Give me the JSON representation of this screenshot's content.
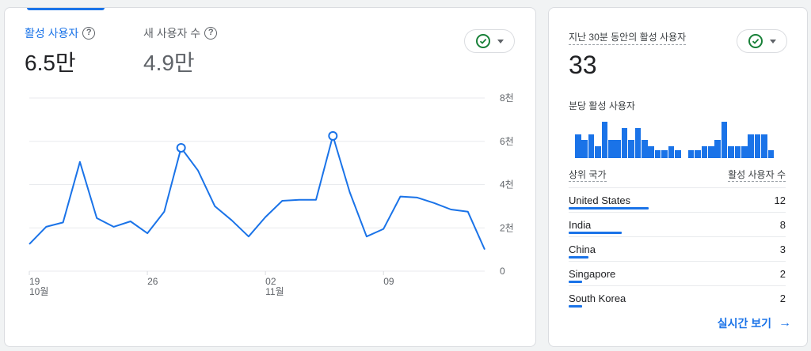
{
  "overview": {
    "metrics": [
      {
        "label": "활성 사용자",
        "value": "6.5만"
      },
      {
        "label": "새 사용자 수",
        "value": "4.9만"
      }
    ]
  },
  "icons": {
    "help": "help-icon",
    "status": "check-circle-icon",
    "caret": "caret-down-icon",
    "arrow": "arrow-forward-icon"
  },
  "colors": {
    "accent": "#1a73e8",
    "status_green": "#188038",
    "grid": "#e8eaed"
  },
  "chart_data": {
    "type": "line",
    "y_tick_labels": [
      "0",
      "2천",
      "4천",
      "6천",
      "8천"
    ],
    "ylim": [
      0,
      8000
    ],
    "x_ticks": [
      {
        "day": "19",
        "month": "10월",
        "index": 0
      },
      {
        "day": "26",
        "month": "",
        "index": 7
      },
      {
        "day": "02",
        "month": "11월",
        "index": 14
      },
      {
        "day": "09",
        "month": "",
        "index": 21
      }
    ],
    "series": [
      {
        "values": [
          1250,
          2050,
          2250,
          5050,
          2450,
          2050,
          2300,
          1750,
          2750,
          5700,
          4650,
          3000,
          2350,
          1600,
          2500,
          3250,
          3300,
          3300,
          6250,
          3650,
          1600,
          1950,
          3450,
          3400,
          3150,
          2850,
          2750,
          1000
        ],
        "markers": [
          9,
          18
        ]
      }
    ],
    "grid": true
  },
  "realtime": {
    "title": "지난 30분 동안의 활성 사용자",
    "count": "33",
    "per_minute_label": "분당 활성 사용자",
    "per_minute_values": [
      3,
      2.3,
      3,
      1.5,
      4.6,
      2.3,
      2.3,
      3.8,
      2.3,
      3.8,
      2.3,
      1.5,
      1,
      1,
      1.5,
      1,
      0,
      1,
      1,
      1.5,
      1.5,
      2.3,
      4.6,
      1.5,
      1.5,
      1.5,
      3,
      3,
      3,
      1
    ],
    "table_headers": [
      "상위 국가",
      "활성 사용자 수"
    ],
    "countries": [
      {
        "name": "United States",
        "value": "12",
        "fraction": 1.0
      },
      {
        "name": "India",
        "value": "8",
        "fraction": 0.667
      },
      {
        "name": "China",
        "value": "3",
        "fraction": 0.25
      },
      {
        "name": "Singapore",
        "value": "2",
        "fraction": 0.167
      },
      {
        "name": "South Korea",
        "value": "2",
        "fraction": 0.167
      }
    ],
    "link_label": "실시간 보기"
  }
}
